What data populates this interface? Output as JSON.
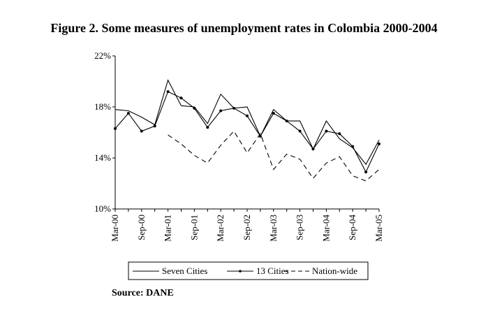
{
  "title": "Figure 2. Some measures of unemployment rates in Colombia 2000-2004",
  "source": "Source: DANE",
  "chart_data": {
    "type": "line",
    "x_index": [
      0,
      1,
      2,
      3,
      4,
      5,
      6,
      7,
      8,
      9,
      10,
      11,
      12,
      13,
      14,
      15,
      16,
      17,
      18,
      19,
      20
    ],
    "x_tick_labels": [
      "Mar-00",
      "Sep-00",
      "Mar-01",
      "Sep-01",
      "Mar-02",
      "Sep-02",
      "Mar-03",
      "Sep-03",
      "Mar-04",
      "Sep-04",
      "Mar-05"
    ],
    "x_tick_positions": [
      0,
      2,
      4,
      6,
      8,
      10,
      12,
      14,
      16,
      18,
      20
    ],
    "y_tick_labels": [
      "10%",
      "14%",
      "18%",
      "22%"
    ],
    "y_ticks": [
      10,
      14,
      18,
      22
    ],
    "ylim": [
      10,
      22
    ],
    "grid": false,
    "legend_position": "bottom",
    "series": [
      {
        "name": "Seven Cities",
        "style": "solid",
        "markers": false,
        "values": [
          17.8,
          17.7,
          17.2,
          16.6,
          20.1,
          18.1,
          18.0,
          16.7,
          19.0,
          17.9,
          18.0,
          15.7,
          17.8,
          16.9,
          16.9,
          14.7,
          16.9,
          15.5,
          14.8,
          13.5,
          15.4
        ]
      },
      {
        "name": "13 Cities",
        "style": "solid",
        "markers": true,
        "values": [
          16.3,
          17.5,
          16.1,
          16.5,
          19.2,
          18.7,
          17.9,
          16.4,
          17.7,
          17.9,
          17.3,
          15.7,
          17.5,
          16.9,
          16.1,
          14.7,
          16.1,
          15.9,
          14.9,
          12.9,
          15.1
        ]
      },
      {
        "name": "Nation-wide",
        "style": "dashed",
        "markers": false,
        "values": [
          null,
          null,
          null,
          null,
          15.8,
          15.1,
          14.2,
          13.6,
          15.0,
          16.1,
          14.4,
          15.9,
          13.1,
          14.3,
          13.9,
          12.4,
          13.6,
          14.1,
          12.6,
          12.2,
          13.1
        ]
      }
    ],
    "colors": {
      "line": "#000000"
    }
  }
}
